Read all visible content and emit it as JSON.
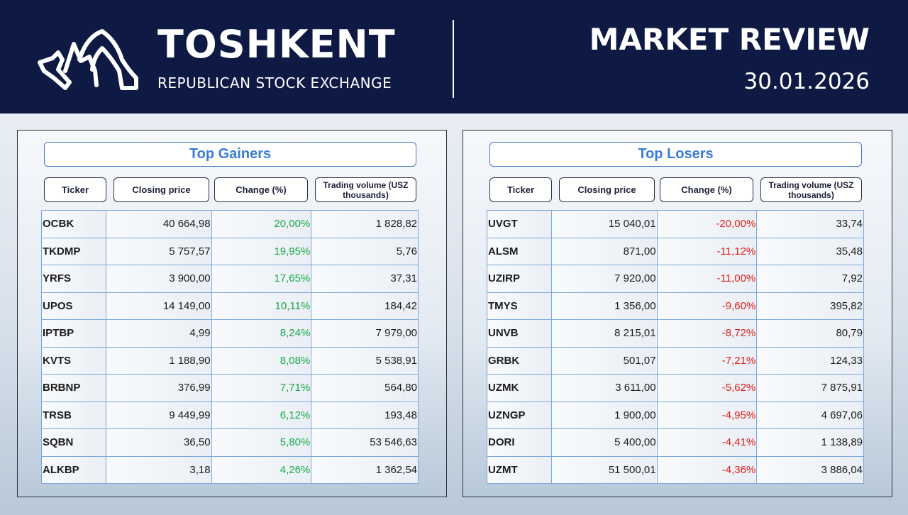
{
  "header": {
    "brand_name": "TOSHKENT",
    "brand_sub": "REPUBLICAN STOCK EXCHANGE",
    "review_title": "MARKET REVIEW",
    "review_date": "30.01.2026",
    "logo_icon": "toshkent-exchange-logo-icon"
  },
  "colors": {
    "header_bg": "#0e1a44",
    "title_blue": "#3a7bd5",
    "gain_green": "#1aa84a",
    "loss_red": "#e0201b",
    "cell_border": "#7ea7de"
  },
  "gainers": {
    "title": "Top Gainers",
    "columns": [
      "Ticker",
      "Closing price",
      "Change (%)",
      "Trading volume (USZ thousands)"
    ],
    "rows": [
      {
        "ticker": "OCBK",
        "price": "40 664,98",
        "change": "20,00%",
        "volume": "1 828,82"
      },
      {
        "ticker": "TKDMP",
        "price": "5 757,57",
        "change": "19,95%",
        "volume": "5,76"
      },
      {
        "ticker": "YRFS",
        "price": "3 900,00",
        "change": "17,65%",
        "volume": "37,31"
      },
      {
        "ticker": "UPOS",
        "price": "14 149,00",
        "change": "10,11%",
        "volume": "184,42"
      },
      {
        "ticker": "IPTBP",
        "price": "4,99",
        "change": "8,24%",
        "volume": "7 979,00"
      },
      {
        "ticker": "KVTS",
        "price": "1 188,90",
        "change": "8,08%",
        "volume": "5 538,91"
      },
      {
        "ticker": "BRBNP",
        "price": "376,99",
        "change": "7,71%",
        "volume": "564,80"
      },
      {
        "ticker": "TRSB",
        "price": "9 449,99",
        "change": "6,12%",
        "volume": "193,48"
      },
      {
        "ticker": "SQBN",
        "price": "36,50",
        "change": "5,80%",
        "volume": "53 546,63"
      },
      {
        "ticker": "ALKBP",
        "price": "3,18",
        "change": "4,26%",
        "volume": "1 362,54"
      }
    ]
  },
  "losers": {
    "title": "Top Losers",
    "columns": [
      "Ticker",
      "Closing price",
      "Change (%)",
      "Trading volume (USZ thousands)"
    ],
    "rows": [
      {
        "ticker": "UVGT",
        "price": "15 040,01",
        "change": "-20,00%",
        "volume": "33,74"
      },
      {
        "ticker": "ALSM",
        "price": "871,00",
        "change": "-11,12%",
        "volume": "35,48"
      },
      {
        "ticker": "UZIRP",
        "price": "7 920,00",
        "change": "-11,00%",
        "volume": "7,92"
      },
      {
        "ticker": "TMYS",
        "price": "1 356,00",
        "change": "-9,60%",
        "volume": "395,82"
      },
      {
        "ticker": "UNVB",
        "price": "8 215,01",
        "change": "-8,72%",
        "volume": "80,79"
      },
      {
        "ticker": "GRBK",
        "price": "501,07",
        "change": "-7,21%",
        "volume": "124,33"
      },
      {
        "ticker": "UZMK",
        "price": "3 611,00",
        "change": "-5,62%",
        "volume": "7 875,91"
      },
      {
        "ticker": "UZNGP",
        "price": "1 900,00",
        "change": "-4,95%",
        "volume": "4 697,06"
      },
      {
        "ticker": "DORI",
        "price": "5 400,00",
        "change": "-4,41%",
        "volume": "1 138,89"
      },
      {
        "ticker": "UZMT",
        "price": "51 500,01",
        "change": "-4,36%",
        "volume": "3 886,04"
      }
    ]
  }
}
